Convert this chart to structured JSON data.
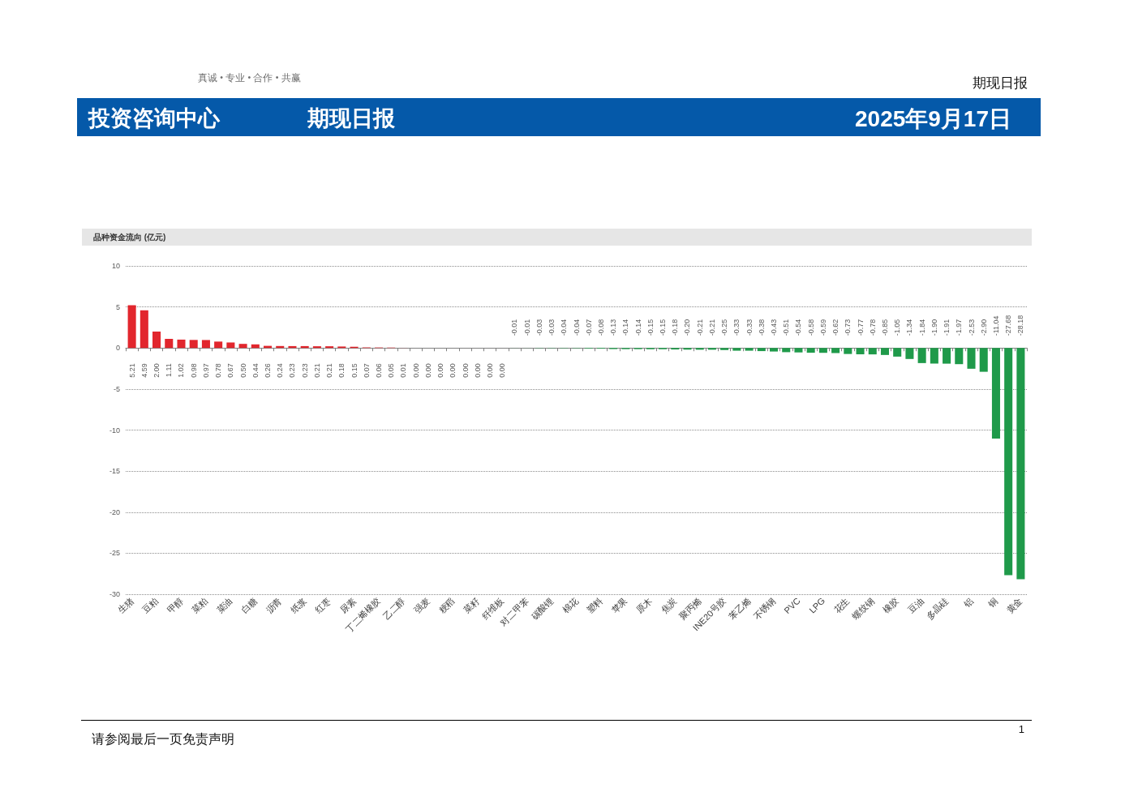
{
  "chart_data": {
    "type": "bar",
    "title": "品种资金流向 (亿元)",
    "annotations": [
      "真诚 • 专业 • 合作 • 共赢",
      "期现日报",
      "投资咨询中心",
      "期现日报",
      "2025年9月17日",
      "请参阅最后一页免责声明",
      "1"
    ],
    "categories": [
      "生猪",
      null,
      "豆粕",
      null,
      "甲醇",
      null,
      "菜粕",
      null,
      "菜油",
      null,
      "白糖",
      null,
      "沥青",
      null,
      "纸浆",
      null,
      "红枣",
      null,
      "尿素",
      null,
      "丁二烯橡胶",
      null,
      "乙二醇",
      null,
      "强麦",
      null,
      "粳稻",
      null,
      "菜籽",
      null,
      "纤维板",
      null,
      "对二甲苯",
      null,
      "碳酸锂",
      null,
      "棉花",
      null,
      "塑料",
      null,
      "苹果",
      null,
      "原木",
      null,
      "焦炭",
      null,
      "聚丙烯",
      null,
      "INE20号胶",
      null,
      "苯乙烯",
      null,
      "不锈钢",
      null,
      "PVC",
      null,
      "LPG",
      null,
      "花生",
      null,
      "螺纹钢",
      null,
      "橡胶",
      null,
      "豆油",
      null,
      "多晶硅",
      null,
      "铝",
      null,
      "铜",
      null,
      "黄金"
    ],
    "values": [
      5.21,
      4.59,
      2.0,
      1.11,
      1.02,
      0.98,
      0.97,
      0.78,
      0.67,
      0.5,
      0.44,
      0.26,
      0.24,
      0.23,
      0.23,
      0.21,
      0.21,
      0.18,
      0.15,
      0.07,
      0.06,
      0.05,
      0.01,
      0,
      0,
      0,
      0,
      0,
      0,
      0,
      0,
      -0.01,
      -0.01,
      -0.03,
      -0.03,
      -0.04,
      -0.04,
      -0.07,
      -0.08,
      -0.13,
      -0.14,
      -0.14,
      -0.15,
      -0.15,
      -0.18,
      -0.2,
      -0.21,
      -0.21,
      -0.25,
      -0.33,
      -0.33,
      -0.38,
      -0.43,
      -0.51,
      -0.54,
      -0.58,
      -0.59,
      -0.62,
      -0.73,
      -0.77,
      -0.78,
      -0.85,
      -1.05,
      -1.34,
      -1.84,
      -1.9,
      -1.91,
      -1.97,
      -2.53,
      -2.9,
      -11.04,
      -27.68,
      -28.18
    ],
    "value_labels": [
      "5.21",
      "4.59",
      "2.00",
      "1.11",
      "1.02",
      "0.98",
      "0.97",
      "0.78",
      "0.67",
      "0.50",
      "0.44",
      "0.26",
      "0.24",
      "0.23",
      "0.23",
      "0.21",
      "0.21",
      "0.18",
      "0.15",
      "0.07",
      "0.06",
      "0.05",
      "0.01",
      "0.00",
      "0.00",
      "0.00",
      "0.00",
      "0.00",
      "0.00",
      "0.00",
      "0.00",
      "-0.01",
      "-0.01",
      "-0.03",
      "-0.03",
      "-0.04",
      "-0.04",
      "-0.07",
      "-0.08",
      "-0.13",
      "-0.14",
      "-0.14",
      "-0.15",
      "-0.15",
      "-0.18",
      "-0.20",
      "-0.21",
      "-0.21",
      "-0.25",
      "-0.33",
      "-0.33",
      "-0.38",
      "-0.43",
      "-0.51",
      "-0.54",
      "-0.58",
      "-0.59",
      "-0.62",
      "-0.73",
      "-0.77",
      "-0.78",
      "-0.85",
      "-1.05",
      "-1.34",
      "-1.84",
      "-1.90",
      "-1.91",
      "-1.97",
      "-2.53",
      "-2.90",
      "-11.04",
      "-27.68",
      "-28.18"
    ],
    "colors": [
      "#e2262d",
      "#e2262d",
      "#e2262d",
      "#e2262d",
      "#e2262d",
      "#e2262d",
      "#e2262d",
      "#e2262d",
      "#e2262d",
      "#e2262d",
      "#e2262d",
      "#e2262d",
      "#e2262d",
      "#e2262d",
      "#e2262d",
      "#e2262d",
      "#e2262d",
      "#e2262d",
      "#e2262d",
      "#e2262d",
      "#e2262d",
      "#e2262d",
      "#e2262d",
      "#e2262d",
      "#e2262d",
      "#e2262d",
      "#e2262d",
      "#e2262d",
      "#1f9a4a",
      "#1f9a4a",
      "#1f9a4a",
      "#1f9a4a",
      "#1f9a4a",
      "#1f9a4a",
      "#1f9a4a",
      "#1f9a4a",
      "#1f9a4a",
      "#1f9a4a",
      "#1f9a4a",
      "#1f9a4a",
      "#1f9a4a",
      "#1f9a4a",
      "#1f9a4a",
      "#1f9a4a",
      "#1f9a4a",
      "#1f9a4a",
      "#1f9a4a",
      "#1f9a4a",
      "#1f9a4a",
      "#1f9a4a",
      "#1f9a4a",
      "#1f9a4a",
      "#1f9a4a",
      "#1f9a4a",
      "#1f9a4a",
      "#1f9a4a",
      "#1f9a4a",
      "#1f9a4a",
      "#1f9a4a",
      "#1f9a4a",
      "#1f9a4a",
      "#1f9a4a",
      "#1f9a4a",
      "#1f9a4a",
      "#1f9a4a",
      "#1f9a4a",
      "#1f9a4a",
      "#1f9a4a",
      "#1f9a4a",
      "#1f9a4a",
      "#1f9a4a",
      "#1f9a4a",
      "#1f9a4a"
    ],
    "ylim": [
      -30,
      10
    ],
    "yticks": [
      -30,
      -25,
      -20,
      -15,
      -10,
      -5,
      0,
      5,
      10
    ],
    "grid": "y"
  }
}
